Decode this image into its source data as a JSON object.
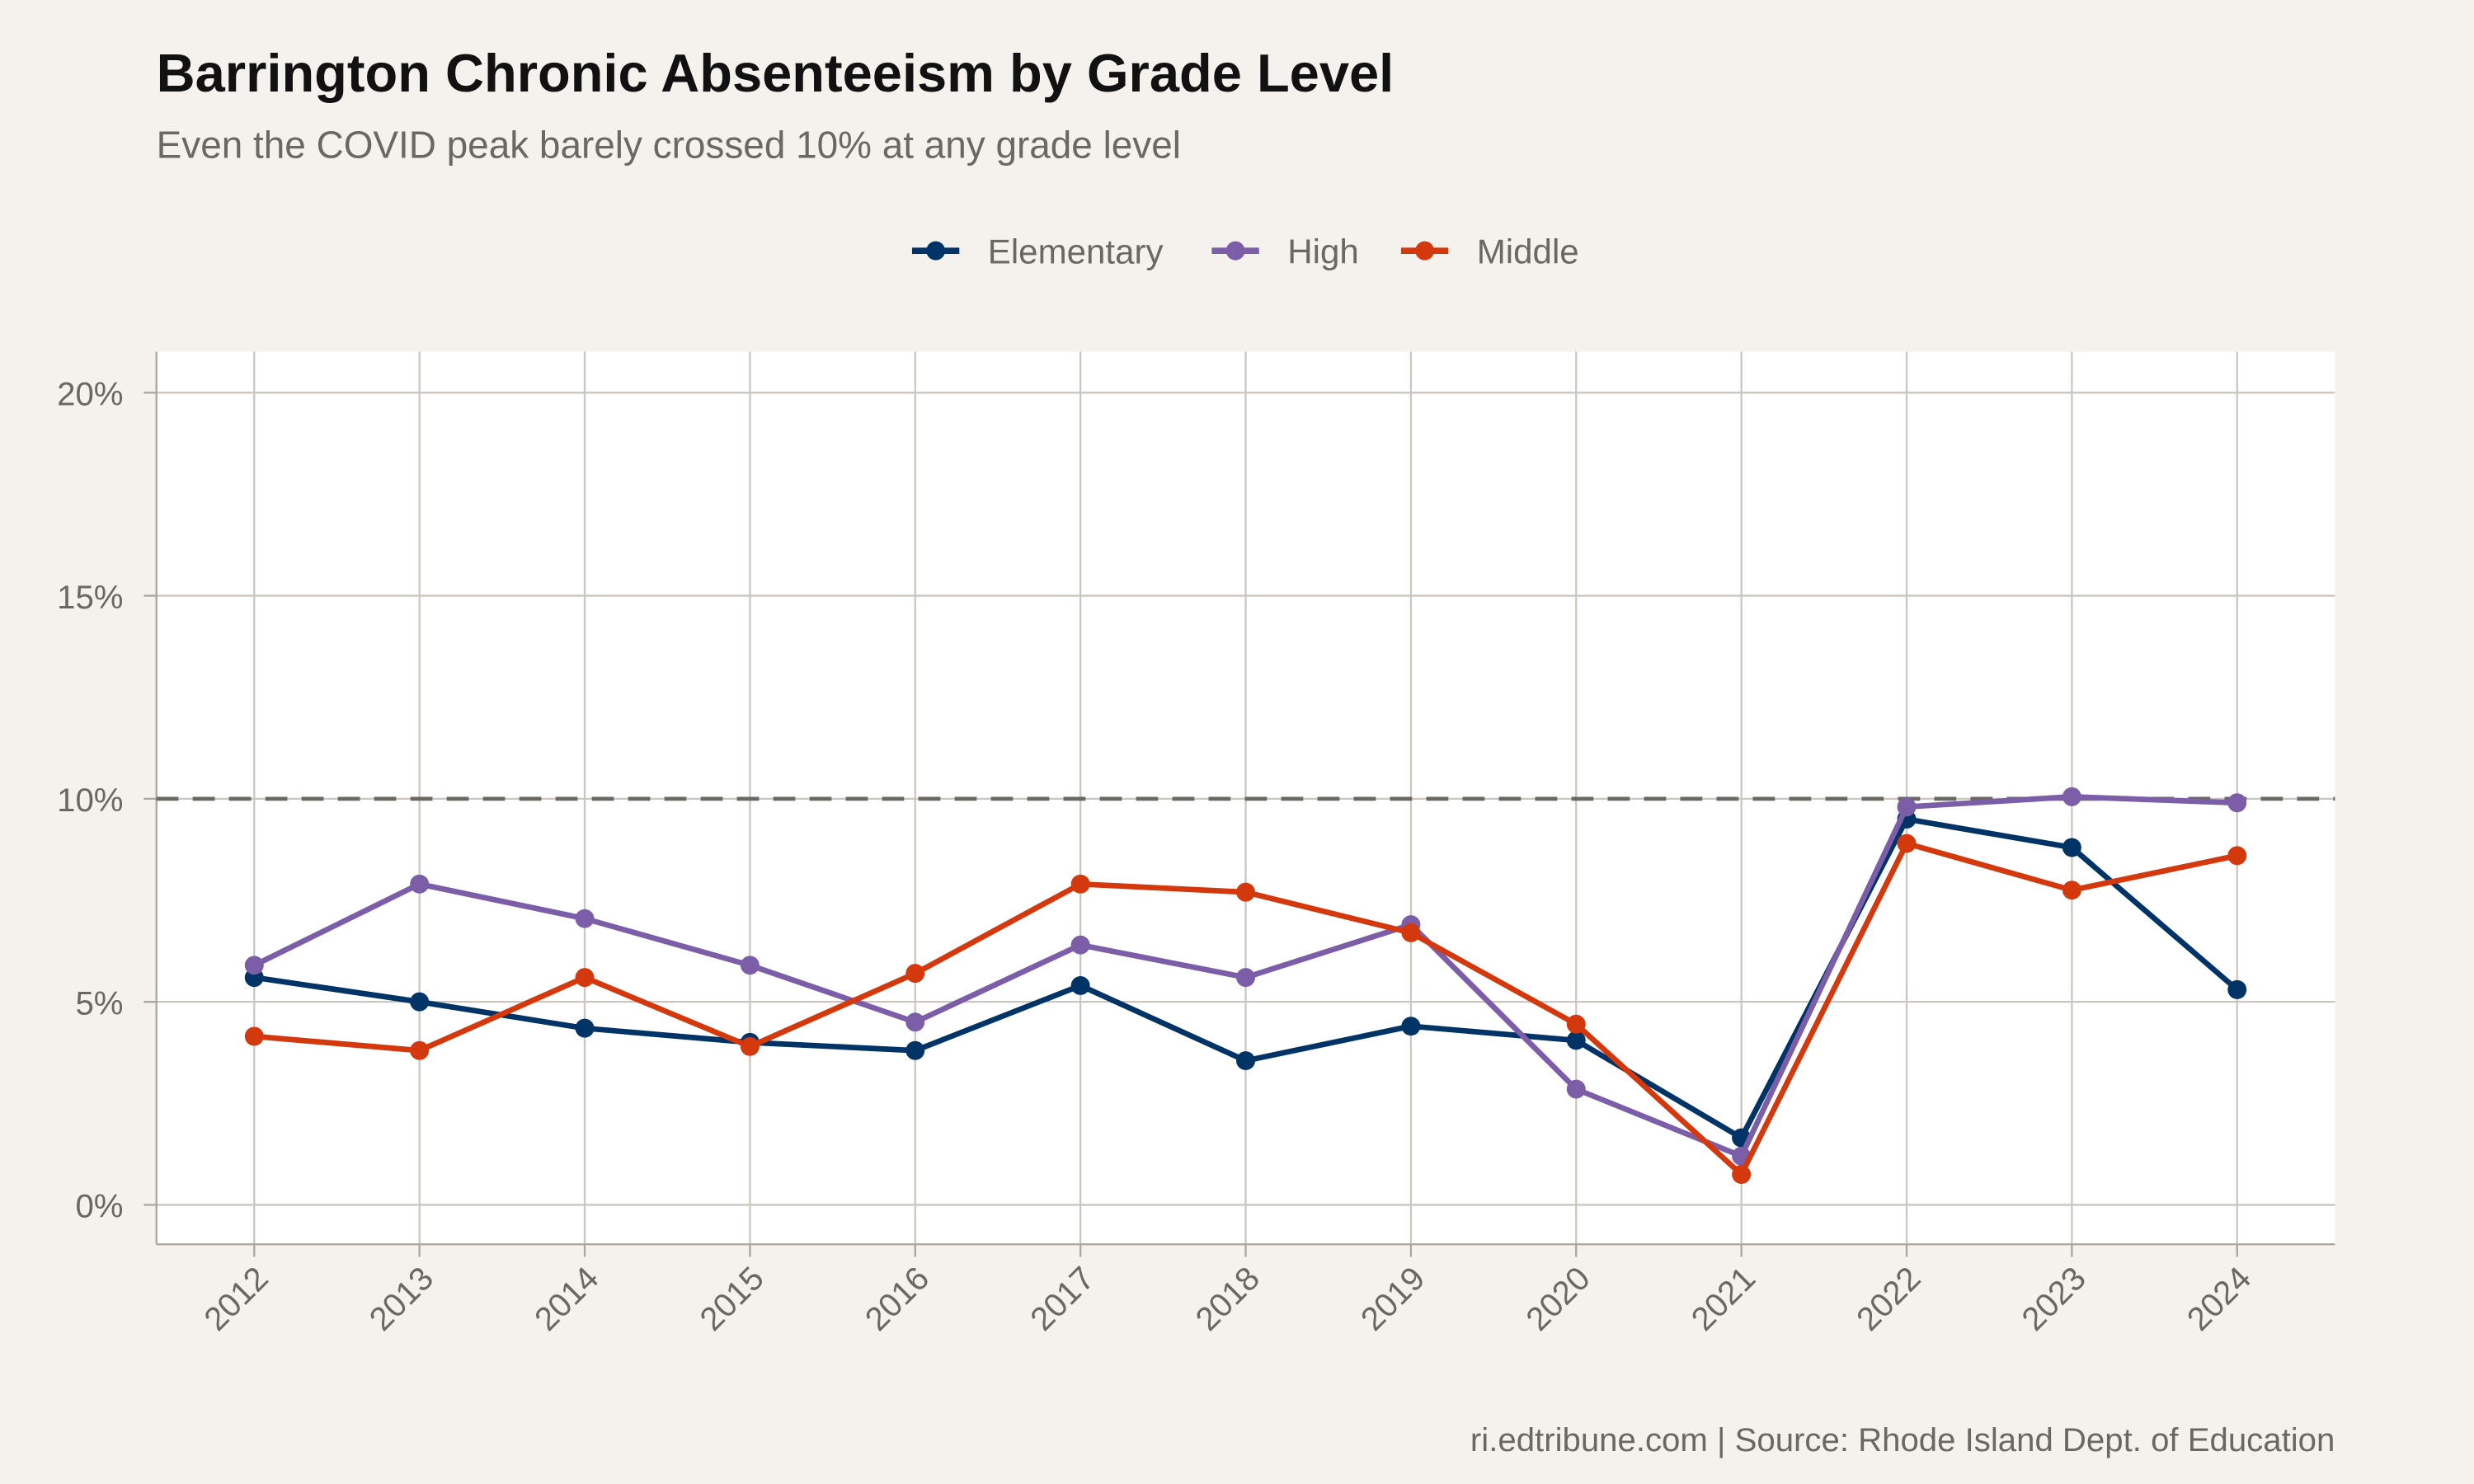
{
  "chart_data": {
    "type": "line",
    "title": "Barrington Chronic Absenteeism by Grade Level",
    "subtitle": "Even the COVID peak barely crossed 10% at any grade level",
    "caption": "ri.edtribune.com | Source: Rhode Island Dept. of Education",
    "xlabel": "",
    "ylabel": "",
    "x": [
      "2012",
      "2013",
      "2014",
      "2015",
      "2016",
      "2017",
      "2018",
      "2019",
      "2020",
      "2021",
      "2022",
      "2023",
      "2024"
    ],
    "ylim": [
      -1,
      21
    ],
    "yticks": [
      0,
      5,
      10,
      15,
      20
    ],
    "ytick_labels": [
      "0%",
      "5%",
      "10%",
      "15%",
      "20%"
    ],
    "grid": true,
    "legend_position": "top",
    "reference_line": {
      "y": 10,
      "style": "dashed",
      "color": "#6b6862"
    },
    "series": [
      {
        "name": "Elementary",
        "color": "#003366",
        "values": [
          5.6,
          5.0,
          4.35,
          4.0,
          3.8,
          5.4,
          3.55,
          4.4,
          4.05,
          1.65,
          9.5,
          8.8,
          5.3
        ]
      },
      {
        "name": "High",
        "color": "#7b5ea7",
        "values": [
          5.9,
          7.9,
          7.05,
          5.9,
          4.5,
          6.4,
          5.6,
          6.9,
          2.85,
          1.2,
          9.8,
          10.05,
          9.9
        ]
      },
      {
        "name": "Middle",
        "color": "#d4380d",
        "values": [
          4.15,
          3.8,
          5.6,
          3.9,
          5.7,
          7.9,
          7.7,
          6.7,
          4.45,
          0.75,
          8.9,
          7.75,
          8.6
        ]
      }
    ]
  }
}
